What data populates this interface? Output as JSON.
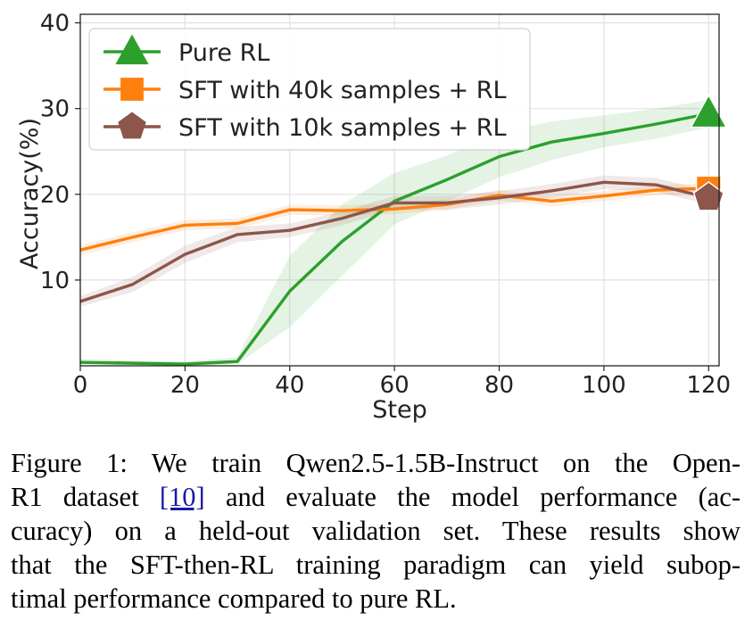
{
  "chart_data": {
    "type": "line",
    "xlabel": "Step",
    "ylabel": "Accuracy(%)",
    "xlim": [
      0,
      122
    ],
    "ylim": [
      0,
      41
    ],
    "xticks": [
      0,
      20,
      40,
      60,
      80,
      100,
      120
    ],
    "yticks": [
      10,
      20,
      30,
      40
    ],
    "grid": true,
    "legend_position": "top-left",
    "series": [
      {
        "name": "Pure RL",
        "color": "#2ca02c",
        "marker": "triangle",
        "x": [
          0,
          10,
          20,
          30,
          40,
          50,
          60,
          70,
          80,
          90,
          100,
          110,
          120
        ],
        "y": [
          0.4,
          0.3,
          0.2,
          0.5,
          8.7,
          14.5,
          19.2,
          21.7,
          24.4,
          26.1,
          27.1,
          28.2,
          29.4
        ],
        "band_lower": [
          0.2,
          0.1,
          0.0,
          0.2,
          4.5,
          10.5,
          16.5,
          19.2,
          22.0,
          24.0,
          25.5,
          26.5,
          27.8
        ],
        "band_upper": [
          0.8,
          0.6,
          0.5,
          1.0,
          12.8,
          18.8,
          22.5,
          24.5,
          27.2,
          28.5,
          29.2,
          30.0,
          31.0
        ]
      },
      {
        "name": "SFT with 40k samples + RL",
        "color": "#ff7f0e",
        "marker": "square",
        "x": [
          0,
          10,
          20,
          30,
          40,
          50,
          60,
          70,
          80,
          90,
          100,
          110,
          120
        ],
        "y": [
          13.5,
          15.0,
          16.4,
          16.6,
          18.2,
          18.1,
          18.3,
          18.8,
          19.9,
          19.2,
          19.8,
          20.5,
          20.7
        ],
        "band_lower": [
          12.9,
          14.4,
          15.8,
          16.0,
          17.6,
          17.5,
          17.7,
          18.2,
          19.3,
          18.6,
          19.2,
          19.9,
          20.1
        ],
        "band_upper": [
          14.1,
          15.6,
          17.0,
          17.2,
          18.8,
          18.7,
          18.9,
          19.4,
          20.5,
          19.8,
          20.4,
          21.1,
          21.3
        ]
      },
      {
        "name": "SFT with 10k samples + RL",
        "color": "#8c564b",
        "marker": "pentagon",
        "x": [
          0,
          10,
          20,
          30,
          40,
          50,
          60,
          70,
          80,
          90,
          100,
          110,
          120
        ],
        "y": [
          7.5,
          9.5,
          13.0,
          15.3,
          15.8,
          17.2,
          19.0,
          19.0,
          19.6,
          20.4,
          21.4,
          21.1,
          19.6
        ],
        "band_lower": [
          6.9,
          8.6,
          12.0,
          14.4,
          15.0,
          16.4,
          18.2,
          18.2,
          18.8,
          19.6,
          20.6,
          20.3,
          18.8
        ],
        "band_upper": [
          8.1,
          10.4,
          14.0,
          16.2,
          16.6,
          18.0,
          19.8,
          19.8,
          20.4,
          21.2,
          22.2,
          21.9,
          20.4
        ]
      }
    ]
  },
  "caption": {
    "line1": "Figure 1: We train Qwen2.5-1.5B-Instruct on the Open-",
    "line2_a": "R1 dataset ",
    "line2_ref": "[10]",
    "line2_b": " and evaluate the model performance (ac-",
    "line3": "curacy) on a held-out validation set. These results show",
    "line4": "that the SFT-then-RL training paradigm can yield subop-",
    "line5": "timal performance compared to pure RL."
  }
}
